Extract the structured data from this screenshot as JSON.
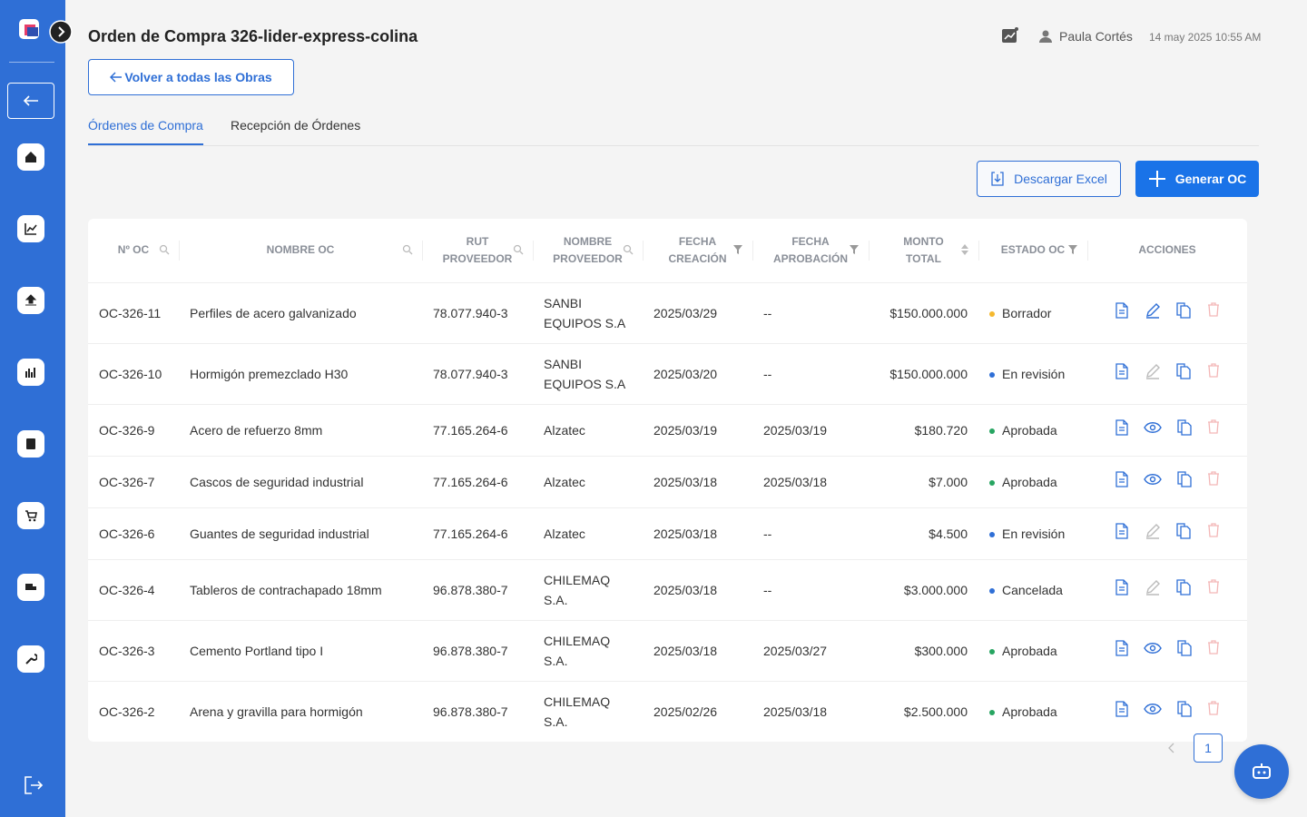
{
  "header": {
    "title": "Orden de Compra 326-lider-express-colina",
    "user": "Paula Cortés",
    "datetime": "14 may 2025 10:55 AM"
  },
  "back_button": "Volver a todas las Obras",
  "tabs": [
    "Órdenes de Compra",
    "Recepción de Órdenes"
  ],
  "actions": [
    "Descargar Excel",
    "Generar OC"
  ],
  "table": {
    "columns": [
      "Nº OC",
      "NOMBRE OC",
      "RUT PROVEEDOR",
      "NOMBRE PROVEEDOR",
      "FECHA CREACIÓN",
      "FECHA APROBACIÓN",
      "MONTO TOTAL",
      "ESTADO OC",
      "ACCIONES"
    ],
    "rows": [
      [
        "OC-326-11",
        "Perfiles de acero galvanizado",
        "78.077.940-3",
        "SANBI EQUIPOS S.A",
        "2025/03/29",
        "--",
        "$150.000.000",
        "Borrador"
      ],
      [
        "OC-326-10",
        "Hormigón premezclado H30",
        "78.077.940-3",
        "SANBI EQUIPOS S.A",
        "2025/03/20",
        "--",
        "$150.000.000",
        "En revisión"
      ],
      [
        "OC-326-9",
        "Acero de refuerzo 8mm",
        "77.165.264-6",
        "Alzatec",
        "2025/03/19",
        "2025/03/19",
        "$180.720",
        "Aprobada"
      ],
      [
        "OC-326-7",
        "Cascos de seguridad industrial",
        "77.165.264-6",
        "Alzatec",
        "2025/03/18",
        "2025/03/18",
        "$7.000",
        "Aprobada"
      ],
      [
        "OC-326-6",
        "Guantes de seguridad industrial",
        "77.165.264-6",
        "Alzatec",
        "2025/03/18",
        "--",
        "$4.500",
        "En revisión"
      ],
      [
        "OC-326-4",
        "Tableros de contrachapado 18mm",
        "96.878.380-7",
        "CHILEMAQ S.A.",
        "2025/03/18",
        "--",
        "$3.000.000",
        "Cancelada"
      ],
      [
        "OC-326-3",
        "Cemento Portland tipo I",
        "96.878.380-7",
        "CHILEMAQ S.A.",
        "2025/03/18",
        "2025/03/27",
        "$300.000",
        "Aprobada"
      ],
      [
        "OC-326-2",
        "Arena y gravilla para hormigón",
        "96.878.380-7",
        "CHILEMAQ S.A.",
        "2025/02/26",
        "2025/03/18",
        "$2.500.000",
        "Aprobada"
      ]
    ],
    "status_colors": [
      "#f5b82e",
      "#2f6fd6",
      "#27a561",
      "#27a561",
      "#2f6fd6",
      "#2f6fd6",
      "#27a561",
      "#27a561"
    ]
  },
  "pagination": {
    "current": 1
  }
}
